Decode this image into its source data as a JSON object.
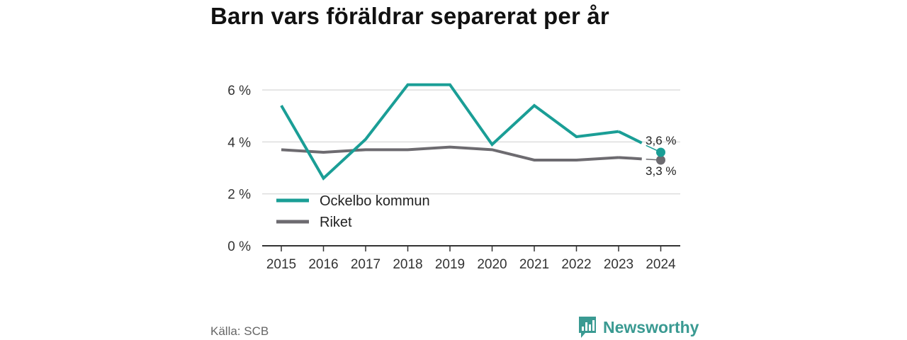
{
  "title": "Barn vars föräldrar separerat per år",
  "source": "Källa: SCB",
  "brand": "Newsworthy",
  "colors": {
    "ockelbo": "#1a9e96",
    "riket": "#6d6b70",
    "grid": "#dddddd",
    "axis": "#333333",
    "brand": "#3a9a92"
  },
  "chart_data": {
    "type": "line",
    "x": [
      "2015",
      "2016",
      "2017",
      "2018",
      "2019",
      "2020",
      "2021",
      "2022",
      "2023",
      "2024"
    ],
    "yticks": [
      "0 %",
      "2 %",
      "4 %",
      "6 %"
    ],
    "ylim": [
      0,
      6.6
    ],
    "grid": true,
    "legend_position": "bottom-left",
    "series": [
      {
        "name": "Ockelbo kommun",
        "values": [
          5.4,
          2.6,
          4.1,
          6.2,
          6.2,
          3.9,
          5.4,
          4.2,
          4.4,
          3.6
        ],
        "end_label": "3,6 %"
      },
      {
        "name": "Riket",
        "values": [
          3.7,
          3.6,
          3.7,
          3.7,
          3.8,
          3.7,
          3.3,
          3.3,
          3.4,
          3.3
        ],
        "end_label": "3,3 %"
      }
    ]
  }
}
